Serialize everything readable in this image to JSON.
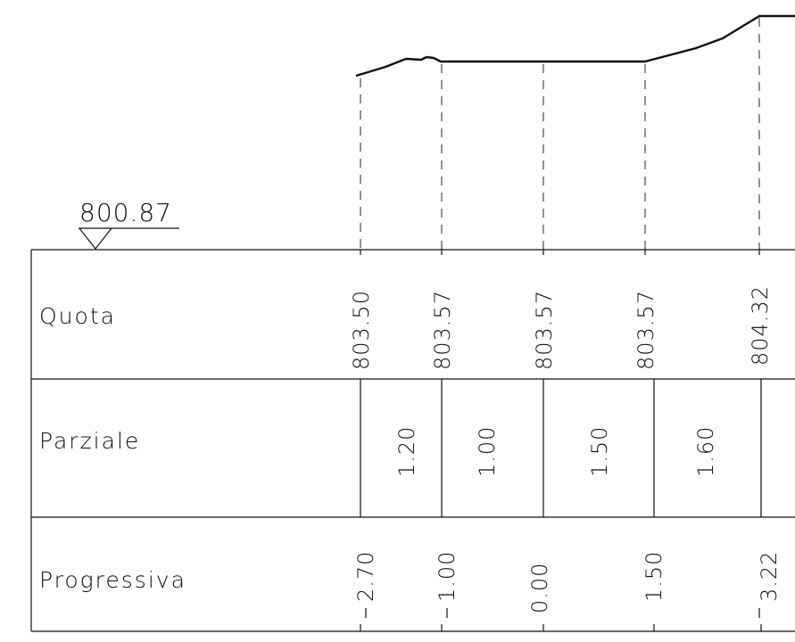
{
  "reference": {
    "value": "800.87"
  },
  "rows": {
    "quota": "Quota",
    "parziale": "Parziale",
    "progressiva": "Progressiva"
  },
  "sections": [
    {
      "quota": "803.50",
      "parziale": "1.20",
      "progressiva": "2.70"
    },
    {
      "quota": "803.57",
      "parziale": "1.00",
      "progressiva": "1.00"
    },
    {
      "quota": "803.57",
      "parziale": "1.50",
      "progressiva": "0.00"
    },
    {
      "quota": "803.57",
      "parziale": "1.60",
      "progressiva": "1.50"
    },
    {
      "quota": "804.32",
      "parziale": "",
      "progressiva": "3.22"
    }
  ]
}
